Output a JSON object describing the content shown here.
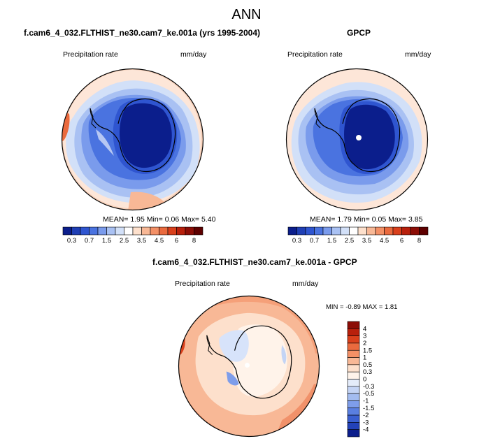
{
  "header": {
    "title": "ANN"
  },
  "panels": [
    {
      "title": "f.cam6_4_032.FLTHIST_ne30.cam7_ke.001a (yrs 1995-2004)",
      "variable": "Precipitation rate",
      "units": "mm/day",
      "stats": {
        "mean_label": "MEAN=",
        "mean": "1.95",
        "min_label": "Min=",
        "min": "0.06",
        "max_label": "Max=",
        "max": "5.40"
      }
    },
    {
      "title": "GPCP",
      "variable": "Precipitation rate",
      "units": "mm/day",
      "stats": {
        "mean_label": "MEAN=",
        "mean": "1.79",
        "min_label": "Min=",
        "min": "0.05",
        "max_label": "Max=",
        "max": "3.85"
      }
    },
    {
      "title": "f.cam6_4_032.FLTHIST_ne30.cam7_ke.001a - GPCP",
      "variable": "Precipitation rate",
      "units": "mm/day",
      "stats": {
        "min_label": "MIN =",
        "min": "-0.89",
        "max_label": "MAX =",
        "max": "1.81"
      }
    }
  ],
  "chart_data": [
    {
      "type": "heatmap",
      "title": "f.cam6_4_032.FLTHIST_ne30.cam7_ke.001a (yrs 1995-2004)",
      "projection": "south polar stereographic",
      "colorbar": {
        "orientation": "horizontal",
        "levels": [
          0.3,
          0.5,
          0.7,
          1,
          1.5,
          2,
          2.5,
          3,
          3.5,
          4,
          4.5,
          5,
          6,
          7,
          8
        ],
        "tick_labels": [
          "0.3",
          "0.7",
          "1.5",
          "2.5",
          "3.5",
          "4.5",
          "6",
          "8"
        ],
        "colors": [
          "#0b1e8c",
          "#1f3fb5",
          "#2f55d0",
          "#4a73e0",
          "#7a9bec",
          "#a9c1f3",
          "#d2e0f8",
          "#ffffff",
          "#fde0cc",
          "#f8b896",
          "#f39066",
          "#ea6a3e",
          "#d9401c",
          "#b8200c",
          "#8c0d06",
          "#5e0000"
        ]
      },
      "stats": {
        "mean": 1.95,
        "min": 0.06,
        "max": 5.4
      }
    },
    {
      "type": "heatmap",
      "title": "GPCP",
      "projection": "south polar stereographic",
      "colorbar": {
        "orientation": "horizontal",
        "levels": [
          0.3,
          0.5,
          0.7,
          1,
          1.5,
          2,
          2.5,
          3,
          3.5,
          4,
          4.5,
          5,
          6,
          7,
          8
        ],
        "tick_labels": [
          "0.3",
          "0.7",
          "1.5",
          "2.5",
          "3.5",
          "4.5",
          "6",
          "8"
        ],
        "colors": [
          "#0b1e8c",
          "#1f3fb5",
          "#2f55d0",
          "#4a73e0",
          "#7a9bec",
          "#a9c1f3",
          "#d2e0f8",
          "#ffffff",
          "#fde0cc",
          "#f8b896",
          "#f39066",
          "#ea6a3e",
          "#d9401c",
          "#b8200c",
          "#8c0d06",
          "#5e0000"
        ]
      },
      "stats": {
        "mean": 1.79,
        "min": 0.05,
        "max": 3.85
      }
    },
    {
      "type": "heatmap",
      "title": "f.cam6_4_032.FLTHIST_ne30.cam7_ke.001a - GPCP",
      "projection": "south polar stereographic",
      "colorbar": {
        "orientation": "vertical",
        "levels": [
          -4,
          -3,
          -2,
          -1.5,
          -1,
          -0.5,
          -0.3,
          0,
          0.3,
          0.5,
          1,
          1.5,
          2,
          3,
          4
        ],
        "tick_labels": [
          "4",
          "3",
          "2",
          "1.5",
          "1",
          "0.5",
          "0.3",
          "0",
          "-0.3",
          "-0.5",
          "-1",
          "-1.5",
          "-2",
          "-3",
          "-4"
        ],
        "colors_top_to_bottom": [
          "#8c0d06",
          "#b8200c",
          "#d9401c",
          "#ea6a3e",
          "#f39066",
          "#f8b896",
          "#fde0cc",
          "#fff3ea",
          "#e4ecfa",
          "#c4d4f5",
          "#a3bcf0",
          "#7e9dea",
          "#5a7fe0",
          "#3a5fd0",
          "#2342b8",
          "#0b1e8c"
        ]
      },
      "stats": {
        "min": -0.89,
        "max": 1.81
      }
    }
  ]
}
